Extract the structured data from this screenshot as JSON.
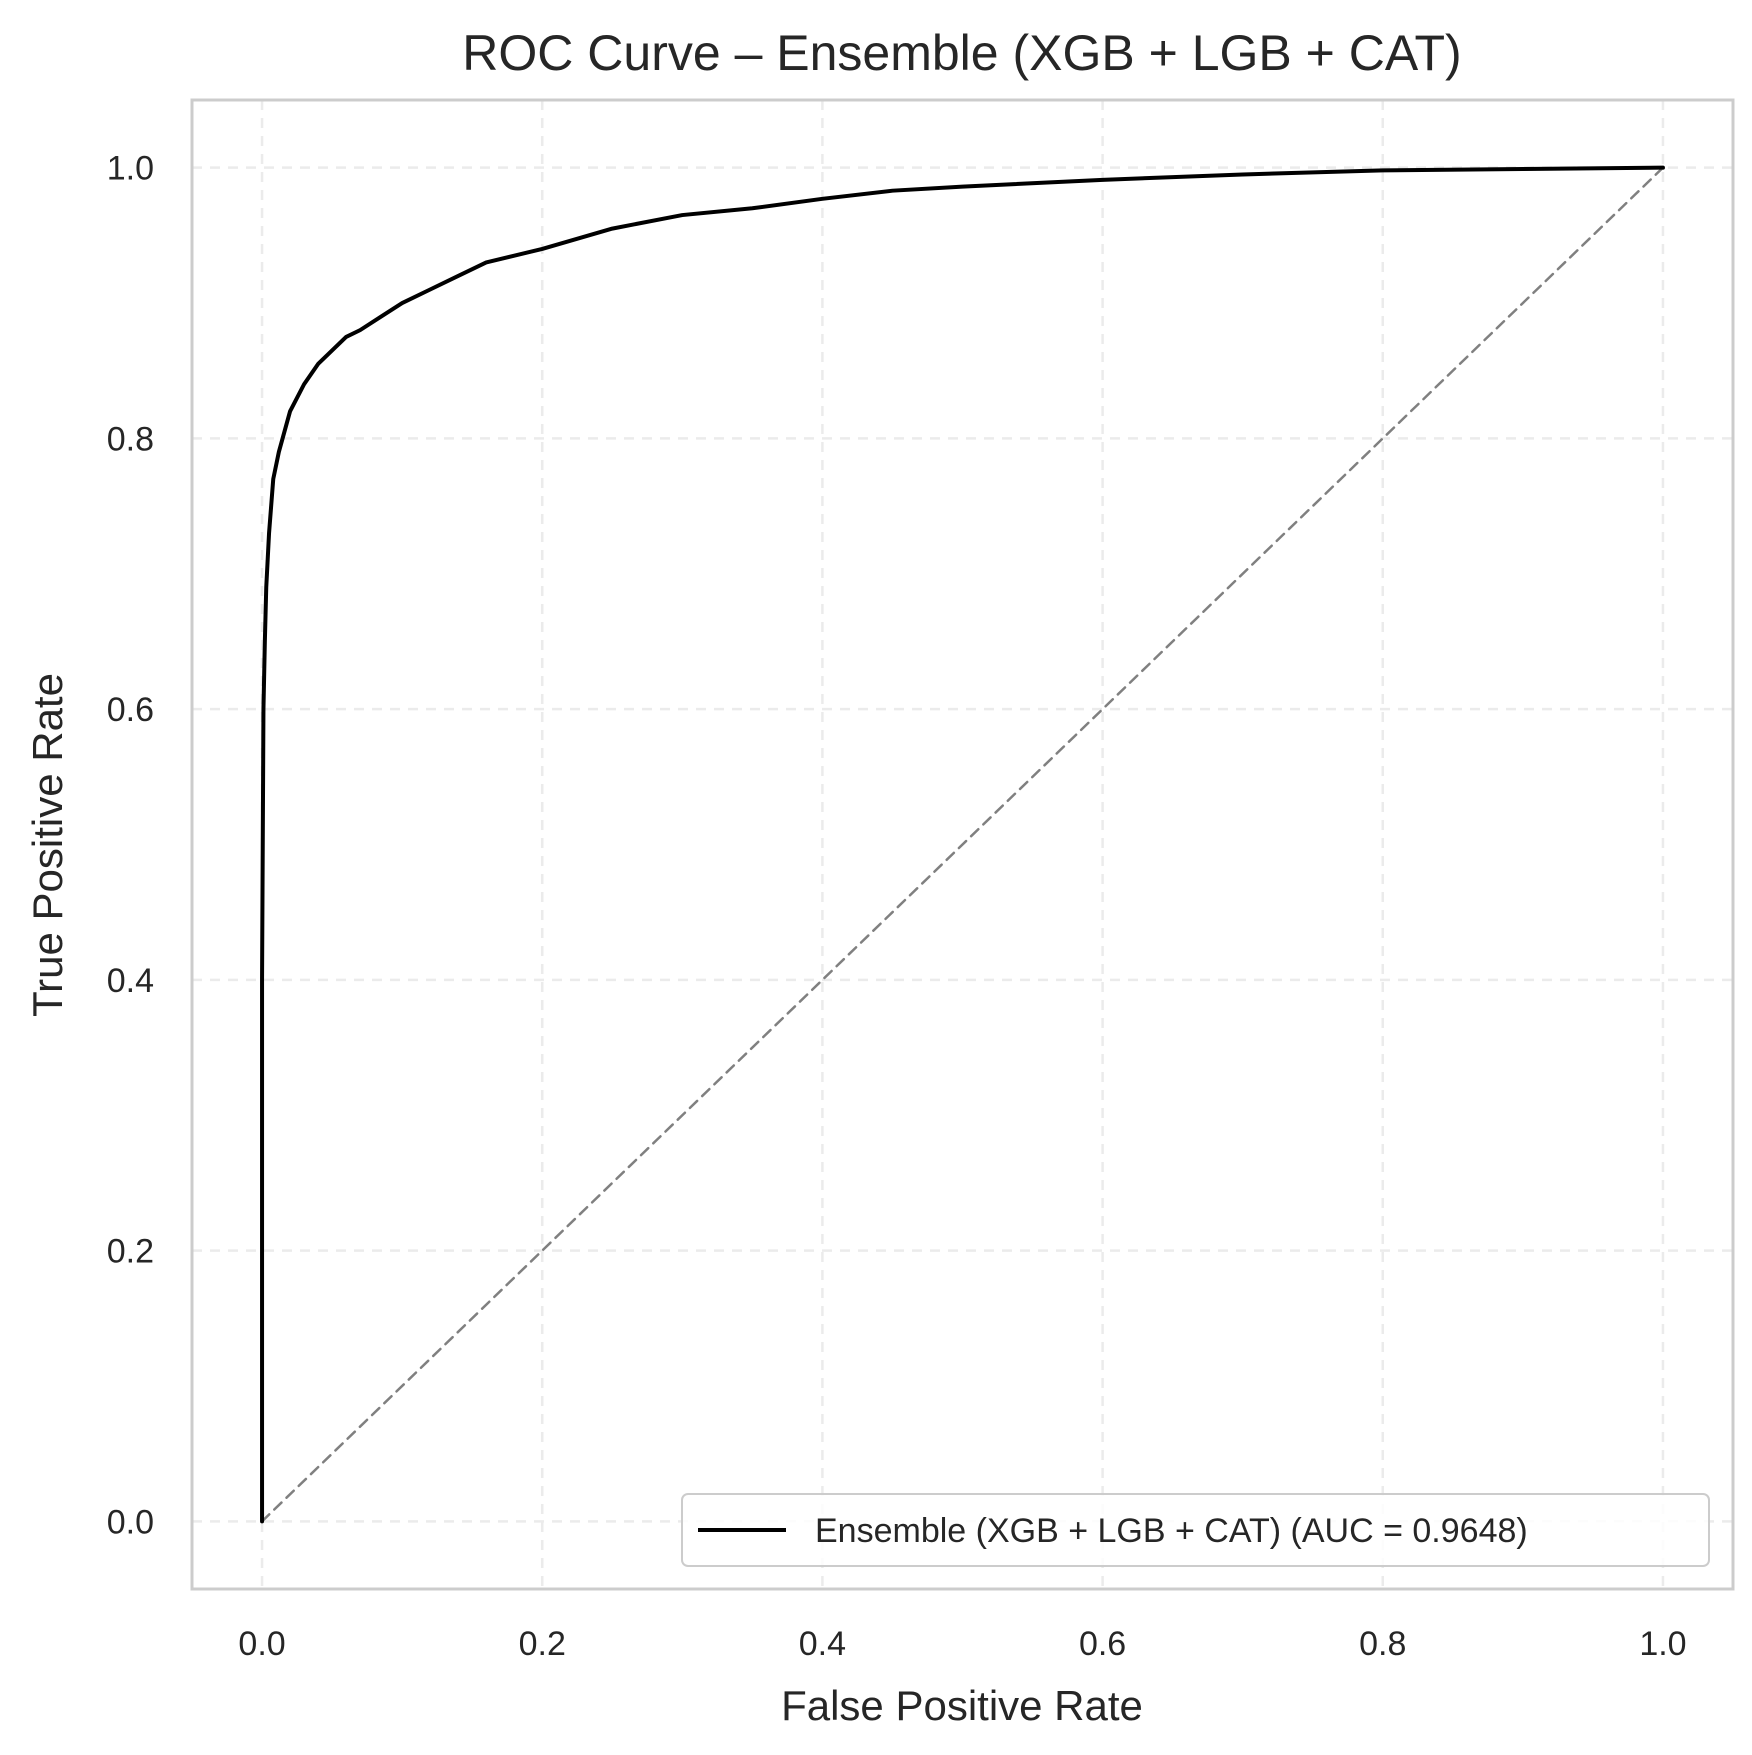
{
  "chart_data": {
    "type": "line",
    "title": "ROC Curve – Ensemble (XGB + LGB + CAT)",
    "xlabel": "False Positive Rate",
    "ylabel": "True Positive Rate",
    "xlim": [
      -0.05,
      1.05
    ],
    "ylim": [
      -0.05,
      1.05
    ],
    "xticks": [
      0.0,
      0.2,
      0.4,
      0.6,
      0.8,
      1.0
    ],
    "yticks": [
      0.0,
      0.2,
      0.4,
      0.6,
      0.8,
      1.0
    ],
    "xtick_labels": [
      "0.0",
      "0.2",
      "0.4",
      "0.6",
      "0.8",
      "1.0"
    ],
    "ytick_labels": [
      "0.0",
      "0.2",
      "0.4",
      "0.6",
      "0.8",
      "1.0"
    ],
    "grid": true,
    "legend_position": "lower-right",
    "series": [
      {
        "name": "Ensemble (XGB + LGB + CAT) (AUC = 0.9648)",
        "color": "#000000",
        "style": "solid",
        "x": [
          0.0,
          0.0,
          0.001,
          0.002,
          0.003,
          0.005,
          0.008,
          0.012,
          0.02,
          0.03,
          0.04,
          0.05,
          0.06,
          0.07,
          0.085,
          0.1,
          0.12,
          0.14,
          0.16,
          0.18,
          0.2,
          0.25,
          0.3,
          0.35,
          0.4,
          0.45,
          0.5,
          0.6,
          0.7,
          0.8,
          0.9,
          1.0
        ],
        "y": [
          0.0,
          0.4,
          0.6,
          0.65,
          0.69,
          0.73,
          0.77,
          0.79,
          0.82,
          0.84,
          0.855,
          0.865,
          0.875,
          0.88,
          0.89,
          0.9,
          0.91,
          0.92,
          0.93,
          0.935,
          0.94,
          0.955,
          0.965,
          0.97,
          0.977,
          0.983,
          0.986,
          0.991,
          0.995,
          0.998,
          0.999,
          1.0
        ]
      },
      {
        "name": "",
        "color": "#808080",
        "style": "dashed",
        "x": [
          0.0,
          1.0
        ],
        "y": [
          0.0,
          1.0
        ]
      }
    ]
  }
}
